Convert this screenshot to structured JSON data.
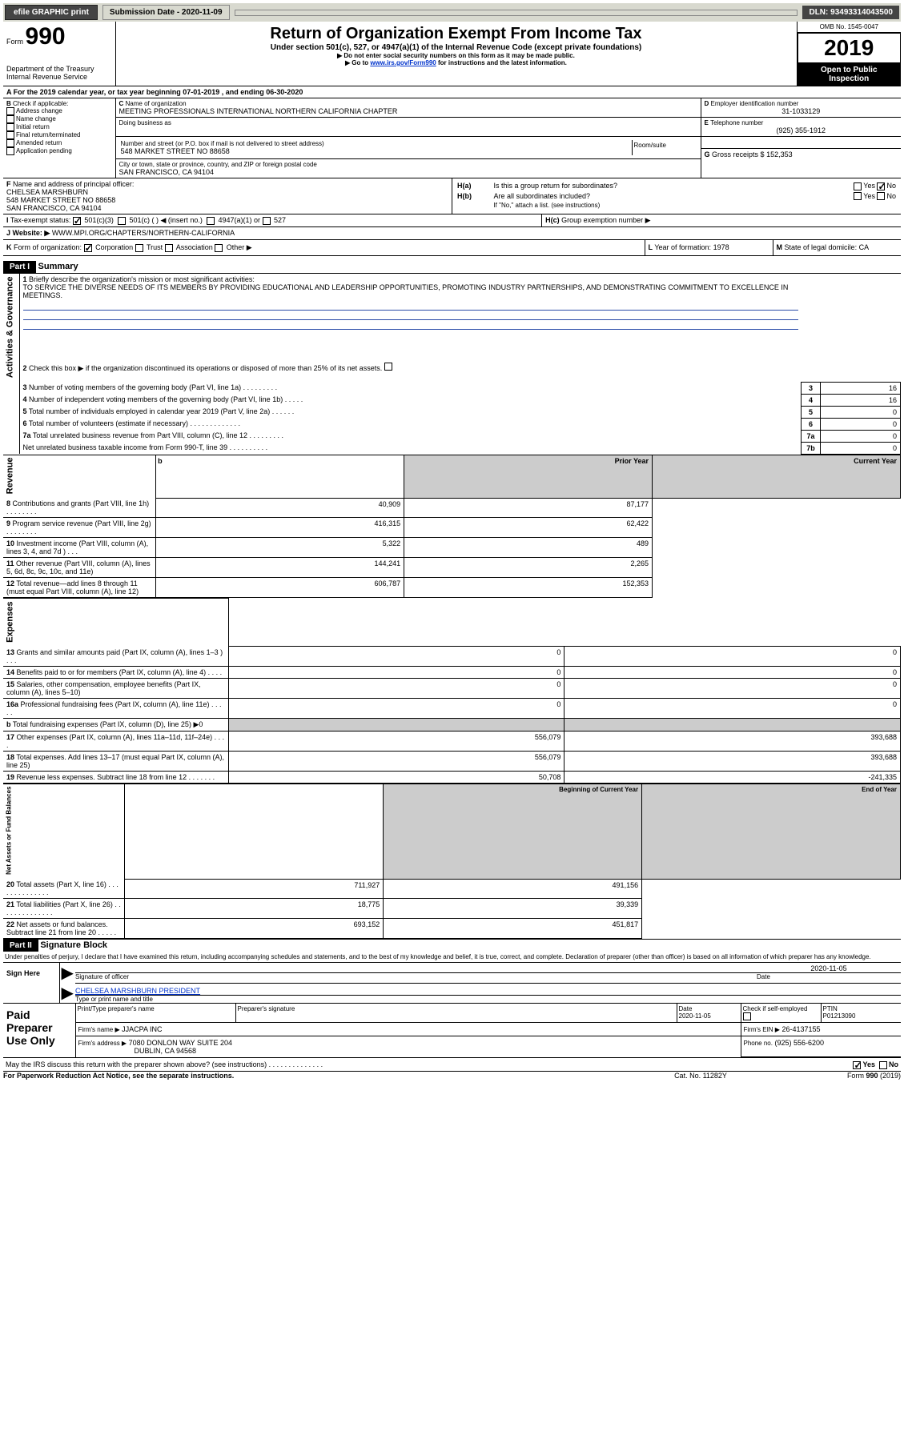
{
  "topbar": {
    "efile": "efile GRAPHIC print",
    "submission_label": "Submission Date - 2020-11-09",
    "dln_label": "DLN: 93493314043500"
  },
  "header": {
    "form": "Form",
    "form_num": "990",
    "dept": "Department of the Treasury\nInternal Revenue Service",
    "title": "Return of Organization Exempt From Income Tax",
    "subtitle": "Under section 501(c), 527, or 4947(a)(1) of the Internal Revenue Code (except private foundations)",
    "note1": "Do not enter social security numbers on this form as it may be made public.",
    "note2": "Go to www.irs.gov/Form990 for instructions and the latest information.",
    "link": "www.irs.gov/Form990",
    "omb_label": "OMB No. 1545-0047",
    "year": "2019",
    "inspection1": "Open to Public",
    "inspection2": "Inspection"
  },
  "period": {
    "text": "For the 2019 calendar year, or tax year beginning 07-01-2019    , and ending 06-30-2020"
  },
  "boxB": {
    "label": "Check if applicable:",
    "opts": [
      "Address change",
      "Name change",
      "Initial return",
      "Final return/terminated",
      "Amended return",
      "Application pending"
    ]
  },
  "boxC": {
    "name_label": "Name of organization",
    "name": "MEETING PROFESSIONALS INTERNATIONAL NORTHERN CALIFORNIA CHAPTER",
    "dba": "Doing business as",
    "addr_label": "Number and street (or P.O. box if mail is not delivered to street address)",
    "room": "Room/suite",
    "addr": "548 MARKET STREET NO 88658",
    "city_label": "City or town, state or province, country, and ZIP or foreign postal code",
    "city": "SAN FRANCISCO, CA  94104"
  },
  "boxD": {
    "label": "Employer identification number",
    "val": "31-1033129"
  },
  "boxE": {
    "label": "Telephone number",
    "val": "(925) 355-1912"
  },
  "boxG": {
    "label": "Gross receipts $",
    "val": "152,353"
  },
  "boxF": {
    "label": "Name and address of principal officer:",
    "name": "CHELSEA MARSHBURN",
    "addr1": "548 MARKET STREET NO 88658",
    "addr2": "SAN FRANCISCO, CA  94104"
  },
  "boxH": {
    "a": "Is this a group return for subordinates?",
    "b": "Are all subordinates included?",
    "note": "If \"No,\" attach a list. (see instructions)",
    "c": "Group exemption number ▶",
    "yes": "Yes",
    "no": "No"
  },
  "boxI": {
    "label": "Tax-exempt status:",
    "o1": "501(c)(3)",
    "o2": "501(c) (   ) ◀ (insert no.)",
    "o3": "4947(a)(1) or",
    "o4": "527"
  },
  "boxJ": {
    "label": "Website: ▶",
    "val": "WWW.MPI.ORG/CHAPTERS/NORTHERN-CALIFORNIA"
  },
  "boxK": {
    "label": "Form of organization:",
    "o1": "Corporation",
    "o2": "Trust",
    "o3": "Association",
    "o4": "Other ▶"
  },
  "boxL": {
    "label": "Year of formation:",
    "val": "1978"
  },
  "boxM": {
    "label": "State of legal domicile:",
    "val": "CA"
  },
  "part1": {
    "header": "Part I",
    "title": "Summary",
    "q1": "Briefly describe the organization's mission or most significant activities:",
    "mission": "TO SERVICE THE DIVERSE NEEDS OF ITS MEMBERS BY PROVIDING EDUCATIONAL AND LEADERSHIP OPPORTUNITIES, PROMOTING INDUSTRY PARTNERSHIPS, AND DEMONSTRATING COMMITMENT TO EXCELLENCE IN MEETINGS.",
    "q2": "Check this box ▶       if the organization discontinued its operations or disposed of more than 25% of its net assets.",
    "rows_gov": [
      {
        "n": "3",
        "t": "Number of voting members of the governing body (Part VI, line 1a)   .    .    .    .    .    .    .    .    .",
        "box": "3",
        "v": "16"
      },
      {
        "n": "4",
        "t": "Number of independent voting members of the governing body (Part VI, line 1b)   .    .    .    .    .",
        "box": "4",
        "v": "16"
      },
      {
        "n": "5",
        "t": "Total number of individuals employed in calendar year 2019 (Part V, line 2a)   .    .    .    .    .    .",
        "box": "5",
        "v": "0"
      },
      {
        "n": "6",
        "t": "Total number of volunteers (estimate if necessary)    .    .    .    .    .    .    .    .    .    .    .    .    .",
        "box": "6",
        "v": "0"
      },
      {
        "n": "7a",
        "t": "Total unrelated business revenue from Part VIII, column (C), line 12   .    .    .    .    .    .    .    .    .",
        "box": "7a",
        "v": "0"
      },
      {
        "n": "",
        "t": "Net unrelated business taxable income from Form 990-T, line 39    .    .    .    .    .    .    .    .    .    .",
        "box": "7b",
        "v": "0"
      }
    ],
    "col_prior": "Prior Year",
    "col_current": "Current Year",
    "rows_rev": [
      {
        "n": "8",
        "t": "Contributions and grants (Part VIII, line 1h)   .    .    .    .    .    .    .    .",
        "p": "40,909",
        "c": "87,177"
      },
      {
        "n": "9",
        "t": "Program service revenue (Part VIII, line 2g)    .    .    .    .    .    .    .    .",
        "p": "416,315",
        "c": "62,422"
      },
      {
        "n": "10",
        "t": "Investment income (Part VIII, column (A), lines 3, 4, and 7d )    .    .    .",
        "p": "5,322",
        "c": "489"
      },
      {
        "n": "11",
        "t": "Other revenue (Part VIII, column (A), lines 5, 6d, 8c, 9c, 10c, and 11e)",
        "p": "144,241",
        "c": "2,265"
      },
      {
        "n": "12",
        "t": "Total revenue—add lines 8 through 11 (must equal Part VIII, column (A), line 12)",
        "p": "606,787",
        "c": "152,353"
      }
    ],
    "rows_exp": [
      {
        "n": "13",
        "t": "Grants and similar amounts paid (Part IX, column (A), lines 1–3 )   .    .    .",
        "p": "0",
        "c": "0"
      },
      {
        "n": "14",
        "t": "Benefits paid to or for members (Part IX, column (A), line 4)   .    .    .    .",
        "p": "0",
        "c": "0"
      },
      {
        "n": "15",
        "t": "Salaries, other compensation, employee benefits (Part IX, column (A), lines 5–10)",
        "p": "0",
        "c": "0"
      },
      {
        "n": "16a",
        "t": "Professional fundraising fees (Part IX, column (A), line 11e)   .    .    .    .    .",
        "p": "0",
        "c": "0"
      },
      {
        "n": "b",
        "t": "Total fundraising expenses (Part IX, column (D), line 25) ▶0",
        "p": "",
        "c": "",
        "grey": true
      },
      {
        "n": "17",
        "t": "Other expenses (Part IX, column (A), lines 11a–11d, 11f–24e)   .    .    .    .",
        "p": "556,079",
        "c": "393,688"
      },
      {
        "n": "18",
        "t": "Total expenses. Add lines 13–17 (must equal Part IX, column (A), line 25)",
        "p": "556,079",
        "c": "393,688"
      },
      {
        "n": "19",
        "t": "Revenue less expenses. Subtract line 18 from line 12   .    .    .    .    .    .    .",
        "p": "50,708",
        "c": "-241,335"
      }
    ],
    "col_begin": "Beginning of Current Year",
    "col_end": "End of Year",
    "rows_net": [
      {
        "n": "20",
        "t": "Total assets (Part X, line 16)   .    .    .    .    .    .    .    .    .    .    .    .    .    .",
        "p": "711,927",
        "c": "491,156"
      },
      {
        "n": "21",
        "t": "Total liabilities (Part X, line 26)   .    .    .    .    .    .    .    .    .    .    .    .    .    .",
        "p": "18,775",
        "c": "39,339"
      },
      {
        "n": "22",
        "t": "Net assets or fund balances. Subtract line 21 from line 20   .    .    .    .    .",
        "p": "693,152",
        "c": "451,817"
      }
    ],
    "vert_gov": "Activities & Governance",
    "vert_rev": "Revenue",
    "vert_exp": "Expenses",
    "vert_net": "Net Assets or Fund Balances"
  },
  "part2": {
    "header": "Part II",
    "title": "Signature Block",
    "decl": "Under penalties of perjury, I declare that I have examined this return, including accompanying schedules and statements, and to the best of my knowledge and belief, it is true, correct, and complete. Declaration of preparer (other than officer) is based on all information of which preparer has any knowledge.",
    "sign_here": "Sign Here",
    "sig_label": "Signature of officer",
    "date_label": "Date",
    "date_val": "2020-11-05",
    "name": "CHELSEA MARSHBURN  PRESIDENT",
    "name_label": "Type or print name and title",
    "paid": "Paid Preparer Use Only",
    "p_name_label": "Print/Type preparer's name",
    "p_sig_label": "Preparer's signature",
    "p_date_label": "Date",
    "p_date": "2020-11-05",
    "p_check": "Check        if self-employed",
    "ptin_label": "PTIN",
    "ptin": "P01213090",
    "firm_name_label": "Firm's name    ▶",
    "firm_name": "JJACPA INC",
    "firm_ein_label": "Firm's EIN ▶",
    "firm_ein": "26-4137155",
    "firm_addr_label": "Firm's address ▶",
    "firm_addr1": "7080 DONLON WAY SUITE 204",
    "firm_addr2": "DUBLIN, CA  94568",
    "phone_label": "Phone no.",
    "phone": "(925) 556-6200",
    "discuss": "May the IRS discuss this return with the preparer shown above? (see instructions)   .    .    .    .    .    .    .    .    .    .    .    .    .    .",
    "yes": "Yes",
    "no": "No"
  },
  "footer": {
    "left": "For Paperwork Reduction Act Notice, see the separate instructions.",
    "mid": "Cat. No. 11282Y",
    "right": "Form 990 (2019)"
  }
}
